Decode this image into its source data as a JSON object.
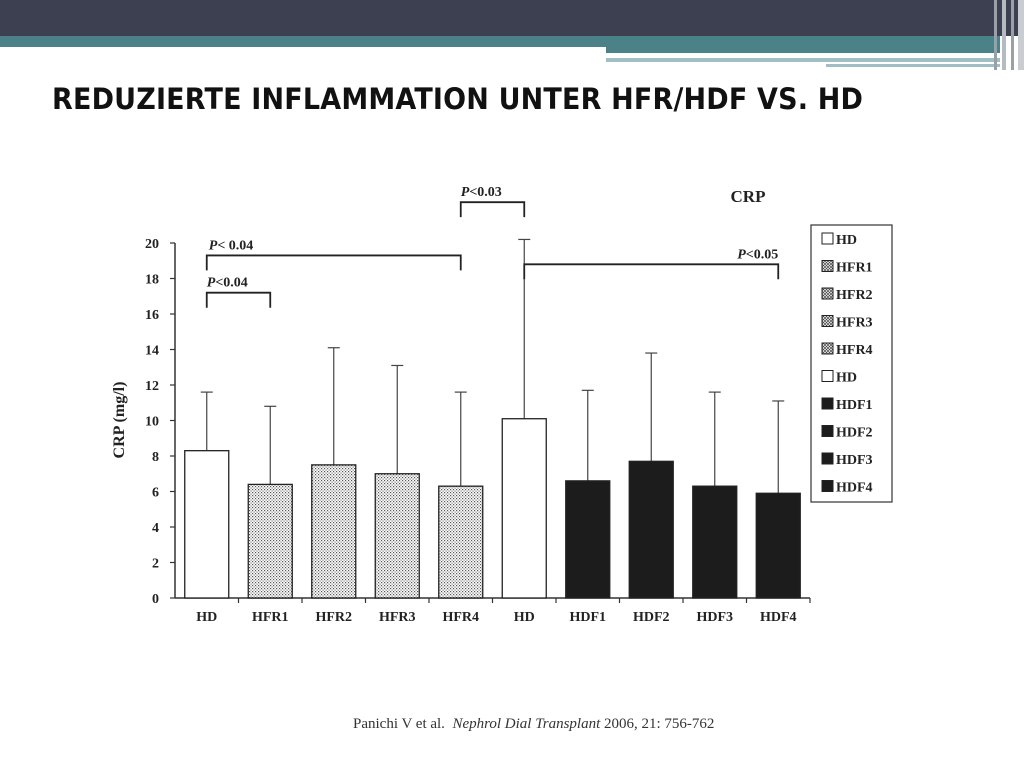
{
  "slide": {
    "title": "REDUZIERTE INFLAMMATION UNTER HFR/HDF VS. HD",
    "colors": {
      "header_bar": "#3d4050",
      "accent_teal": "#4b8287",
      "accent_light": "#9fbfc2"
    }
  },
  "citation": {
    "authors": "Panichi V et al.",
    "journal": "Nephrol Dial Transplant",
    "details": "2006, 21: 756-762"
  },
  "chart_data": {
    "type": "bar",
    "title": "CRP",
    "ylabel": "CRP (mg/l)",
    "xlabel": "",
    "ylim": [
      0,
      20
    ],
    "yticks": [
      0,
      2,
      4,
      6,
      8,
      10,
      12,
      14,
      16,
      18,
      20
    ],
    "categories": [
      "HD",
      "HFR1",
      "HFR2",
      "HFR3",
      "HFR4",
      "HD",
      "HDF1",
      "HDF2",
      "HDF3",
      "HDF4"
    ],
    "values": [
      8.3,
      6.4,
      7.5,
      7.0,
      6.3,
      10.1,
      6.6,
      7.7,
      6.3,
      5.9
    ],
    "error_upper": [
      11.6,
      10.8,
      14.1,
      13.1,
      11.6,
      20.2,
      11.7,
      13.8,
      11.6,
      11.1
    ],
    "fills": [
      "white",
      "dotted",
      "dotted",
      "dotted",
      "dotted",
      "white",
      "black",
      "black",
      "black",
      "black"
    ],
    "grid": false,
    "legend_position": "right",
    "legend": [
      {
        "label": "HD",
        "fill": "white"
      },
      {
        "label": "HFR1",
        "fill": "hatched"
      },
      {
        "label": "HFR2",
        "fill": "hatched"
      },
      {
        "label": "HFR3",
        "fill": "hatched"
      },
      {
        "label": "HFR4",
        "fill": "hatched"
      },
      {
        "label": "HD",
        "fill": "white"
      },
      {
        "label": "HDF1",
        "fill": "black"
      },
      {
        "label": "HDF2",
        "fill": "black"
      },
      {
        "label": "HDF3",
        "fill": "black"
      },
      {
        "label": "HDF4",
        "fill": "black"
      }
    ],
    "annotations": [
      {
        "from": 0,
        "to": 4,
        "y": 19.3,
        "label_prefix": "P",
        "label_rest": "< 0.04"
      },
      {
        "from": 0,
        "to": 1,
        "y": 17.2,
        "label_prefix": "P",
        "label_rest": "<0.04"
      },
      {
        "from": 4,
        "to": 5,
        "y": 22.3,
        "label_prefix": "P",
        "label_rest": "<0.03"
      },
      {
        "from": 5,
        "to": 9,
        "y": 18.8,
        "label_prefix": "P",
        "label_rest": "<0.05"
      }
    ]
  }
}
